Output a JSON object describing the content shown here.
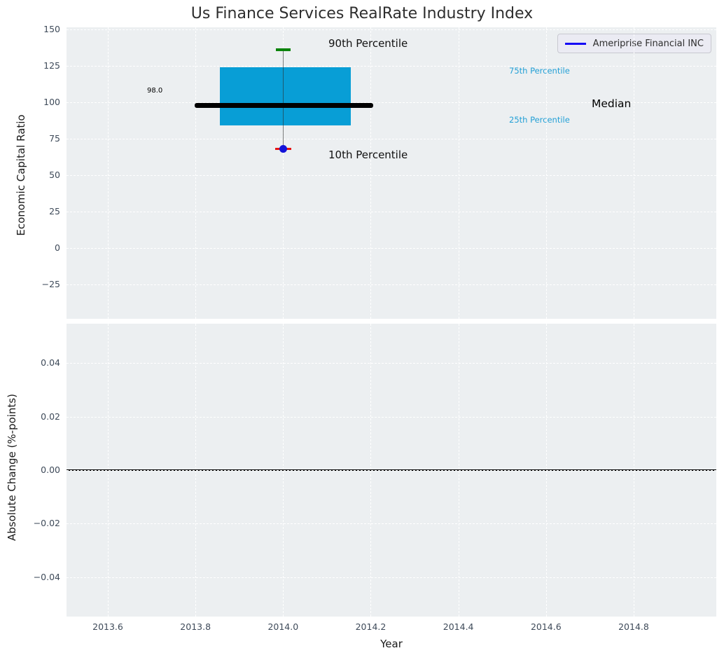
{
  "title": "Us Finance Services RealRate Industry Index",
  "legend": {
    "label": "Ameriprise Financial INC"
  },
  "annotations": {
    "p90": "90th Percentile",
    "p10": "10th Percentile",
    "p75": "75th Percentile",
    "p25": "25th Percentile",
    "median": "Median",
    "median_value": "98.0"
  },
  "top_axes": {
    "ylabel": "Economic Capital Ratio"
  },
  "bottom_axes": {
    "ylabel": "Absolute Change (%-points)"
  },
  "x_axis": {
    "label": "Year"
  },
  "colors": {
    "box_fill": "#089ed6",
    "median_line": "#000000",
    "p90_marker": "#0b830b",
    "p10_marker": "#e51313",
    "company_point": "#1212d9",
    "legend_line": "#1507f5",
    "percentile_text": "#23a0d6",
    "plot_bg": "#eceff1",
    "grid_line": "#ffffff",
    "tick_text": "#3e4a59",
    "whisker": "rgba(45,45,45,0.6)",
    "zero_line": "#000000"
  },
  "chart_data": [
    {
      "type": "boxplot",
      "title": "Us Finance Services RealRate Industry Index",
      "xlabel": "Year",
      "ylabel": "Economic Capital Ratio",
      "grid": true,
      "legend_position": "upper right",
      "legend_entries": [
        "Ameriprise Financial INC"
      ],
      "xlim": [
        2013.5057,
        2014.9886
      ],
      "ylim": [
        -48.56,
        151.44
      ],
      "xticks": [
        {
          "v": 2013.6,
          "label": "2013.6"
        },
        {
          "v": 2013.8,
          "label": "2013.8"
        },
        {
          "v": 2014.0,
          "label": "2014.0"
        },
        {
          "v": 2014.2,
          "label": "2014.2"
        },
        {
          "v": 2014.4,
          "label": "2014.4"
        },
        {
          "v": 2014.6,
          "label": "2014.6"
        },
        {
          "v": 2014.8,
          "label": "2014.8"
        }
      ],
      "yticks": [
        {
          "v": 150,
          "label": "150"
        },
        {
          "v": 125,
          "label": "125"
        },
        {
          "v": 100,
          "label": "100"
        },
        {
          "v": 75,
          "label": "75"
        },
        {
          "v": 50,
          "label": "50"
        },
        {
          "v": 25,
          "label": "25"
        },
        {
          "v": 0,
          "label": "0"
        },
        {
          "v": -25,
          "label": "−25"
        }
      ],
      "box": {
        "x_center": 2014.0,
        "x_span": [
          2013.855,
          2014.155
        ],
        "median": 98.0,
        "q1": 84,
        "q3": 124,
        "p10": 68,
        "p90": 136,
        "median_x_span": [
          2013.798,
          2014.206
        ]
      },
      "series": [
        {
          "name": "Ameriprise Financial INC",
          "x": 2014.0,
          "y": 68
        }
      ]
    },
    {
      "type": "line",
      "xlabel": "Year",
      "ylabel": "Absolute Change (%-points)",
      "grid": true,
      "xlim": [
        2013.5057,
        2014.9886
      ],
      "ylim": [
        -0.0547,
        0.0547
      ],
      "yticks": [
        {
          "v": 0.04,
          "label": "0.04"
        },
        {
          "v": 0.02,
          "label": "0.02"
        },
        {
          "v": 0.0,
          "label": "0.00"
        },
        {
          "v": -0.02,
          "label": "−0.02"
        },
        {
          "v": -0.04,
          "label": "−0.04"
        }
      ],
      "zero_line": 0.0,
      "series": []
    }
  ]
}
